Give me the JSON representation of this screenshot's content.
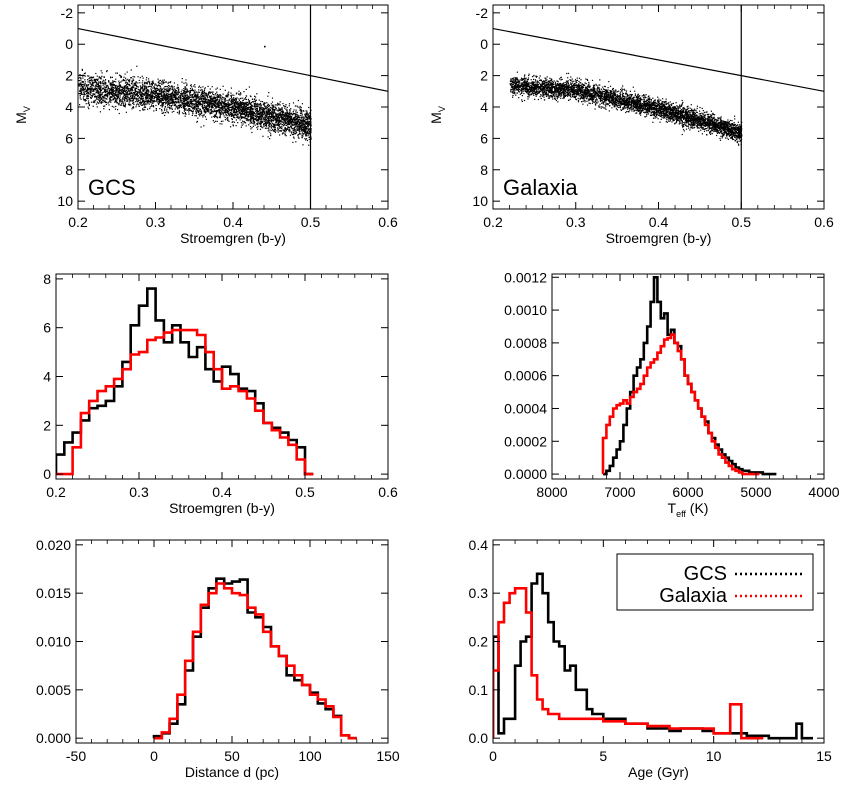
{
  "chart_data": [
    {
      "type": "scatter",
      "panel": "top-left",
      "xlabel": "Stroemgren (b-y)",
      "ylabel": "M",
      "ylabel_sub": "V",
      "annotation": "GCS",
      "xlim": [
        0.2,
        0.6
      ],
      "ylim": [
        10.5,
        -2.5
      ],
      "y_inverted": true,
      "xticks": [
        0.2,
        0.3,
        0.4,
        0.5,
        0.6
      ],
      "yticks": [
        -2,
        0,
        2,
        4,
        6,
        8,
        10
      ],
      "lines": [
        {
          "name": "",
          "points": [
            [
              0.2,
              -1.0
            ],
            [
              0.6,
              3.0
            ]
          ]
        },
        {
          "name": "",
          "points": [
            [
              0.5,
              -2.5
            ],
            [
              0.5,
              10.5
            ]
          ]
        }
      ],
      "scatter_band": {
        "n_points": 4500,
        "x_range": [
          0.2,
          0.5
        ],
        "center": [
          [
            0.2,
            2.8
          ],
          [
            0.3,
            3.2
          ],
          [
            0.4,
            4.0
          ],
          [
            0.5,
            5.2
          ]
        ],
        "spread": 0.85,
        "stray_points": [
          [
            0.44,
            0.1
          ]
        ]
      }
    },
    {
      "type": "scatter",
      "panel": "top-right",
      "xlabel": "Stroemgren (b-y)",
      "ylabel": "M",
      "ylabel_sub": "V",
      "annotation": "Galaxia",
      "xlim": [
        0.2,
        0.6
      ],
      "ylim": [
        10.5,
        -2.5
      ],
      "y_inverted": true,
      "xticks": [
        0.2,
        0.3,
        0.4,
        0.5,
        0.6
      ],
      "yticks": [
        -2,
        0,
        2,
        4,
        6,
        8,
        10
      ],
      "lines": [
        {
          "name": "",
          "points": [
            [
              0.2,
              -1.0
            ],
            [
              0.6,
              3.0
            ]
          ]
        },
        {
          "name": "",
          "points": [
            [
              0.5,
              -2.5
            ],
            [
              0.5,
              10.5
            ]
          ]
        }
      ],
      "scatter_band": {
        "n_points": 4500,
        "x_range": [
          0.22,
          0.5
        ],
        "center": [
          [
            0.22,
            2.6
          ],
          [
            0.3,
            2.9
          ],
          [
            0.4,
            4.1
          ],
          [
            0.5,
            5.6
          ]
        ],
        "spread": 0.55,
        "stray_points": []
      }
    },
    {
      "type": "line",
      "panel": "middle-left",
      "xlabel": "Stroemgren (b-y)",
      "ylabel": "",
      "xlim": [
        0.2,
        0.6
      ],
      "ylim": [
        -0.2,
        8.2
      ],
      "xticks": [
        0.2,
        0.3,
        0.4,
        0.5,
        0.6
      ],
      "yticks": [
        0,
        2,
        4,
        6,
        8
      ],
      "x_reversed": false,
      "series": [
        {
          "name": "",
          "color": "#000000",
          "step": true,
          "x": [
            0.2,
            0.21,
            0.22,
            0.23,
            0.24,
            0.25,
            0.26,
            0.27,
            0.28,
            0.29,
            0.3,
            0.31,
            0.32,
            0.33,
            0.34,
            0.35,
            0.36,
            0.37,
            0.38,
            0.39,
            0.4,
            0.41,
            0.42,
            0.43,
            0.44,
            0.45,
            0.46,
            0.47,
            0.48,
            0.49,
            0.5
          ],
          "y": [
            0.8,
            1.3,
            1.7,
            2.2,
            2.7,
            2.8,
            3.0,
            3.6,
            4.6,
            6.1,
            6.9,
            7.6,
            6.3,
            5.4,
            6.1,
            5.4,
            4.8,
            5.2,
            4.3,
            3.8,
            4.4,
            4.1,
            3.5,
            3.4,
            2.9,
            2.1,
            1.9,
            1.7,
            1.4,
            1.1,
            0.0
          ]
        },
        {
          "name": "",
          "color": "#ff0000",
          "step": true,
          "x": [
            0.2,
            0.21,
            0.22,
            0.23,
            0.24,
            0.25,
            0.26,
            0.27,
            0.28,
            0.29,
            0.3,
            0.31,
            0.32,
            0.33,
            0.34,
            0.35,
            0.36,
            0.37,
            0.38,
            0.39,
            0.4,
            0.41,
            0.42,
            0.43,
            0.44,
            0.45,
            0.46,
            0.47,
            0.48,
            0.49,
            0.5
          ],
          "y": [
            0.0,
            0.0,
            1.1,
            2.5,
            3.0,
            3.4,
            3.6,
            3.9,
            4.3,
            4.9,
            5.0,
            5.5,
            5.6,
            5.8,
            5.9,
            5.9,
            5.9,
            5.7,
            5.0,
            4.3,
            3.5,
            3.6,
            3.4,
            3.1,
            2.6,
            2.1,
            1.8,
            1.5,
            1.2,
            0.6,
            0.0
          ]
        }
      ]
    },
    {
      "type": "line",
      "panel": "middle-right",
      "xlabel": "T",
      "xlabel_sub": "eff",
      "xlabel_suffix": " (K)",
      "ylabel": "",
      "xlim": [
        8000,
        4000
      ],
      "ylim": [
        -3e-05,
        0.00122
      ],
      "xticks": [
        8000,
        7000,
        6000,
        5000,
        4000
      ],
      "yticks": [
        "0.0000",
        "0.0002",
        "0.0004",
        "0.0006",
        "0.0008",
        "0.0010",
        "0.0012"
      ],
      "x_reversed": true,
      "series": [
        {
          "name": "",
          "color": "#000000",
          "step": true,
          "x": [
            7250,
            7200,
            7150,
            7100,
            7050,
            7000,
            6950,
            6900,
            6850,
            6800,
            6750,
            6700,
            6650,
            6600,
            6550,
            6500,
            6450,
            6400,
            6350,
            6300,
            6250,
            6200,
            6150,
            6100,
            6050,
            6000,
            5950,
            5900,
            5850,
            5800,
            5750,
            5700,
            5650,
            5600,
            5550,
            5500,
            5450,
            5400,
            5350,
            5300,
            5250,
            5200,
            5150,
            5100,
            5050,
            5000,
            4950,
            4900,
            4850,
            4800,
            4750
          ],
          "y": [
            0.0,
            2e-05,
            5e-05,
            0.0001,
            0.00015,
            0.0002,
            0.0003,
            0.0004,
            0.0005,
            0.0006,
            0.00065,
            0.0007,
            0.0008,
            0.0009,
            0.00105,
            0.0012,
            0.00105,
            0.00095,
            0.00098,
            0.00085,
            0.00088,
            0.0008,
            0.00078,
            0.0007,
            0.0006,
            0.00055,
            0.0005,
            0.00045,
            0.0004,
            0.00035,
            0.00032,
            0.00025,
            0.00022,
            0.00018,
            0.00015,
            0.00012,
            0.0001,
            8e-05,
            6e-05,
            4e-05,
            3e-05,
            2e-05,
            2e-05,
            1e-05,
            1e-05,
            1e-05,
            1e-05,
            0.0,
            0.0,
            0.0,
            0.0
          ]
        },
        {
          "name": "",
          "color": "#ff0000",
          "step": true,
          "x": [
            7250,
            7200,
            7150,
            7100,
            7050,
            7000,
            6950,
            6900,
            6850,
            6800,
            6750,
            6700,
            6650,
            6600,
            6550,
            6500,
            6450,
            6400,
            6350,
            6300,
            6250,
            6200,
            6150,
            6100,
            6050,
            6000,
            5950,
            5900,
            5850,
            5800,
            5750,
            5700,
            5650,
            5600,
            5550,
            5500,
            5450,
            5400,
            5350,
            5300,
            5250,
            5200,
            5150,
            5100,
            5050,
            5000
          ],
          "y": [
            0.00022,
            0.0003,
            0.00035,
            0.0004,
            0.00042,
            0.00043,
            0.00045,
            0.00043,
            0.00047,
            0.0005,
            0.00052,
            0.00055,
            0.0006,
            0.00065,
            0.00068,
            0.0007,
            0.00074,
            0.00078,
            0.00082,
            0.00083,
            0.00085,
            0.0008,
            0.00075,
            0.0007,
            0.0006,
            0.00055,
            0.0005,
            0.00045,
            0.0004,
            0.00035,
            0.0003,
            0.00025,
            0.0002,
            0.00016,
            0.00012,
            0.0001,
            7e-05,
            5e-05,
            3e-05,
            2e-05,
            1e-05,
            0.0,
            0.0,
            0.0,
            0.0,
            0.0
          ]
        }
      ]
    },
    {
      "type": "line",
      "panel": "bottom-left",
      "xlabel": "Distance d (pc)",
      "ylabel": "",
      "xlim": [
        -50,
        150
      ],
      "ylim": [
        -0.0005,
        0.0205
      ],
      "xticks": [
        -50,
        0,
        50,
        100,
        150
      ],
      "yticks": [
        "0.000",
        "0.005",
        "0.010",
        "0.015",
        "0.020"
      ],
      "x_reversed": false,
      "series": [
        {
          "name": "",
          "color": "#000000",
          "step": true,
          "x": [
            0,
            5,
            10,
            15,
            20,
            25,
            30,
            35,
            40,
            45,
            50,
            55,
            60,
            65,
            70,
            75,
            80,
            85,
            90,
            95,
            100,
            105,
            110,
            115,
            120,
            125
          ],
          "y": [
            0.0002,
            0.0005,
            0.0015,
            0.0035,
            0.007,
            0.0105,
            0.0135,
            0.0155,
            0.0165,
            0.016,
            0.0162,
            0.0164,
            0.013,
            0.0125,
            0.0115,
            0.0095,
            0.0085,
            0.0065,
            0.006,
            0.0055,
            0.0047,
            0.0036,
            0.003,
            0.0023,
            0.0003,
            0.0
          ]
        },
        {
          "name": "",
          "color": "#ff0000",
          "step": true,
          "x": [
            0,
            5,
            10,
            15,
            20,
            25,
            30,
            35,
            40,
            45,
            50,
            55,
            60,
            65,
            70,
            75,
            80,
            85,
            90,
            95,
            100,
            105,
            110,
            115,
            120,
            125
          ],
          "y": [
            0.0,
            0.0006,
            0.002,
            0.0045,
            0.008,
            0.011,
            0.0138,
            0.015,
            0.016,
            0.0155,
            0.015,
            0.0148,
            0.0135,
            0.0128,
            0.011,
            0.0095,
            0.0085,
            0.0075,
            0.0065,
            0.0055,
            0.0045,
            0.004,
            0.0033,
            0.0022,
            0.0003,
            0.0
          ]
        }
      ]
    },
    {
      "type": "line",
      "panel": "bottom-right",
      "xlabel": "Age (Gyr)",
      "ylabel": "",
      "xlim": [
        0,
        15
      ],
      "ylim": [
        -0.01,
        0.41
      ],
      "xticks": [
        0,
        5,
        10,
        15
      ],
      "yticks": [
        "0.0",
        "0.1",
        "0.2",
        "0.3",
        "0.4"
      ],
      "x_reversed": false,
      "legend": {
        "position": "top-right",
        "entries": [
          {
            "label": "GCS",
            "color": "#000000"
          },
          {
            "label": "Galaxia",
            "color": "#ff0000"
          }
        ]
      },
      "series": [
        {
          "name": "GCS",
          "color": "#000000",
          "step": true,
          "x": [
            0.0,
            0.25,
            0.5,
            0.75,
            1.0,
            1.25,
            1.5,
            1.75,
            2.0,
            2.25,
            2.5,
            2.75,
            3.0,
            3.25,
            3.5,
            3.75,
            4.0,
            4.25,
            4.5,
            4.75,
            5.0,
            5.5,
            6.0,
            6.5,
            7.0,
            7.5,
            8.0,
            8.5,
            9.0,
            9.5,
            10.0,
            10.5,
            11.0,
            11.5,
            12.0,
            12.5,
            13.0,
            13.5,
            13.75,
            14.0,
            14.25
          ],
          "y": [
            0.21,
            0.01,
            0.04,
            0.04,
            0.15,
            0.2,
            0.21,
            0.32,
            0.34,
            0.3,
            0.24,
            0.2,
            0.19,
            0.14,
            0.15,
            0.1,
            0.1,
            0.06,
            0.05,
            0.05,
            0.04,
            0.04,
            0.03,
            0.03,
            0.02,
            0.02,
            0.015,
            0.02,
            0.02,
            0.015,
            0.01,
            0.01,
            0.01,
            0.005,
            0.005,
            0.0,
            0.0,
            0.0,
            0.03,
            0.0,
            0.0
          ]
        },
        {
          "name": "Galaxia",
          "color": "#ff0000",
          "step": true,
          "x": [
            0.0,
            0.25,
            0.5,
            0.75,
            1.0,
            1.25,
            1.5,
            1.75,
            2.0,
            2.25,
            2.5,
            2.75,
            3.0,
            3.5,
            4.0,
            4.5,
            5.0,
            5.5,
            6.0,
            6.5,
            7.0,
            7.5,
            8.0,
            8.5,
            9.0,
            9.5,
            10.0,
            10.5,
            10.75,
            11.0,
            11.25,
            11.5,
            12.0
          ],
          "y": [
            0.14,
            0.24,
            0.28,
            0.3,
            0.31,
            0.31,
            0.26,
            0.13,
            0.08,
            0.06,
            0.05,
            0.05,
            0.04,
            0.04,
            0.04,
            0.04,
            0.035,
            0.035,
            0.03,
            0.03,
            0.025,
            0.025,
            0.02,
            0.02,
            0.02,
            0.02,
            0.01,
            0.01,
            0.07,
            0.07,
            0.0,
            0.0,
            0.0
          ]
        }
      ]
    }
  ]
}
